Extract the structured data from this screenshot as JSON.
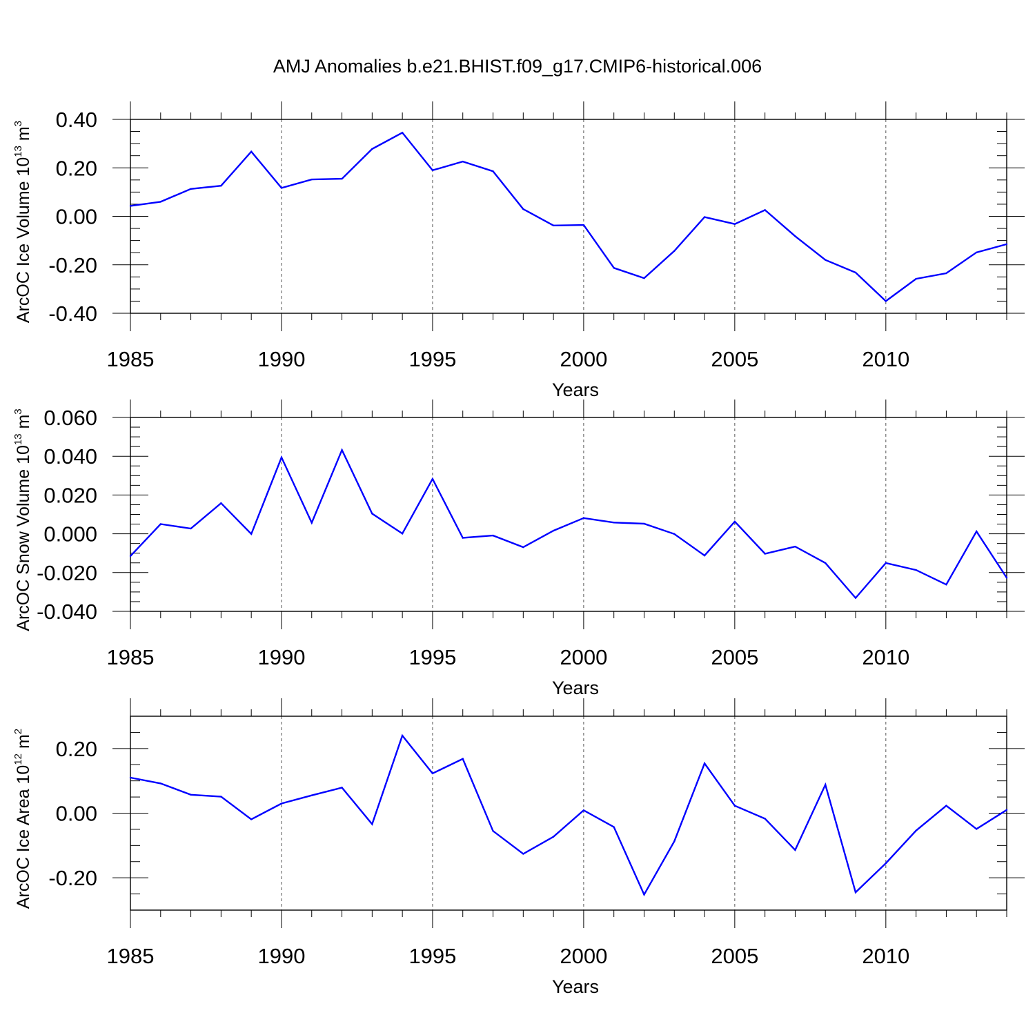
{
  "figure": {
    "title": "AMJ Anomalies b.e21.BHIST.f09_g17.CMIP6-historical.006",
    "line_color": "#0000ff"
  },
  "chart_data": [
    {
      "type": "line",
      "ylabel": "ArcOC Ice Volume 10",
      "ylabel_exp": "13",
      "ylabel_unit": " m",
      "ylabel_unit_exp": "3",
      "xlabel": "Years",
      "xlim": [
        1985,
        2014
      ],
      "ylim": [
        -0.4,
        0.4
      ],
      "yticks": [
        -0.4,
        -0.2,
        0.0,
        0.2,
        0.4
      ],
      "ytick_labels": [
        "-0.40",
        "-0.20",
        "0.00",
        "0.20",
        "0.40"
      ],
      "yminor_step": 0.05,
      "xticks": [
        1985,
        1990,
        1995,
        2000,
        2005,
        2010
      ],
      "xtick_labels": [
        "1985",
        "1990",
        "1995",
        "2000",
        "2005",
        "2010"
      ],
      "x": [
        1985,
        1986,
        1987,
        1988,
        1989,
        1990,
        1991,
        1992,
        1993,
        1994,
        1995,
        1996,
        1997,
        1998,
        1999,
        2000,
        2001,
        2002,
        2003,
        2004,
        2005,
        2006,
        2007,
        2008,
        2009,
        2010,
        2011,
        2012,
        2013,
        2014
      ],
      "values": [
        0.043,
        0.06,
        0.113,
        0.126,
        0.267,
        0.117,
        0.152,
        0.155,
        0.278,
        0.345,
        0.19,
        0.226,
        0.186,
        0.03,
        -0.038,
        -0.036,
        -0.213,
        -0.255,
        -0.143,
        -0.003,
        -0.032,
        0.026,
        -0.082,
        -0.18,
        -0.232,
        -0.35,
        -0.258,
        -0.235,
        -0.149,
        -0.115
      ]
    },
    {
      "type": "line",
      "ylabel": "ArcOC Snow Volume 10",
      "ylabel_exp": "13",
      "ylabel_unit": " m",
      "ylabel_unit_exp": "3",
      "xlabel": "Years",
      "xlim": [
        1985,
        2014
      ],
      "ylim": [
        -0.04,
        0.06
      ],
      "yticks": [
        -0.04,
        -0.02,
        0.0,
        0.02,
        0.04,
        0.06
      ],
      "ytick_labels": [
        "-0.040",
        "-0.020",
        "0.000",
        "0.020",
        "0.040",
        "0.060"
      ],
      "yminor_step": 0.005,
      "xticks": [
        1985,
        1990,
        1995,
        2000,
        2005,
        2010
      ],
      "xtick_labels": [
        "1985",
        "1990",
        "1995",
        "2000",
        "2005",
        "2010"
      ],
      "x": [
        1985,
        1986,
        1987,
        1988,
        1989,
        1990,
        1991,
        1992,
        1993,
        1994,
        1995,
        1996,
        1997,
        1998,
        1999,
        2000,
        2001,
        2002,
        2003,
        2004,
        2005,
        2006,
        2007,
        2008,
        2009,
        2010,
        2011,
        2012,
        2013,
        2014
      ],
      "values": [
        -0.0115,
        0.005,
        0.0027,
        0.0158,
        -0.0001,
        0.0394,
        0.0057,
        0.0432,
        0.0104,
        0.0001,
        0.0283,
        -0.0021,
        -0.0009,
        -0.0069,
        0.0016,
        0.0081,
        0.0058,
        0.0052,
        -0.0001,
        -0.0112,
        0.0063,
        -0.0103,
        -0.0066,
        -0.0151,
        -0.0331,
        -0.0151,
        -0.0187,
        -0.0262,
        0.0012,
        -0.0227
      ]
    },
    {
      "type": "line",
      "ylabel": "ArcOC Ice Area 10",
      "ylabel_exp": "12",
      "ylabel_unit": " m",
      "ylabel_unit_exp": "2",
      "xlabel": "Years",
      "xlim": [
        1985,
        2014
      ],
      "ylim": [
        -0.3,
        0.3
      ],
      "yticks": [
        -0.2,
        0.0,
        0.2
      ],
      "ytick_labels": [
        "-0.20",
        "0.00",
        "0.20"
      ],
      "yminor_step": 0.05,
      "xticks": [
        1985,
        1990,
        1995,
        2000,
        2005,
        2010
      ],
      "xtick_labels": [
        "1985",
        "1990",
        "1995",
        "2000",
        "2005",
        "2010"
      ],
      "x": [
        1985,
        1986,
        1987,
        1988,
        1989,
        1990,
        1991,
        1992,
        1993,
        1994,
        1995,
        1996,
        1997,
        1998,
        1999,
        2000,
        2001,
        2002,
        2003,
        2004,
        2005,
        2006,
        2007,
        2008,
        2009,
        2010,
        2011,
        2012,
        2013,
        2014
      ],
      "values": [
        0.11,
        0.092,
        0.057,
        0.051,
        -0.019,
        0.03,
        0.055,
        0.079,
        -0.034,
        0.24,
        0.123,
        0.168,
        -0.055,
        -0.126,
        -0.073,
        0.009,
        -0.043,
        -0.252,
        -0.087,
        0.154,
        0.023,
        -0.017,
        -0.114,
        0.088,
        -0.245,
        -0.155,
        -0.054,
        0.023,
        -0.049,
        0.01
      ]
    }
  ]
}
